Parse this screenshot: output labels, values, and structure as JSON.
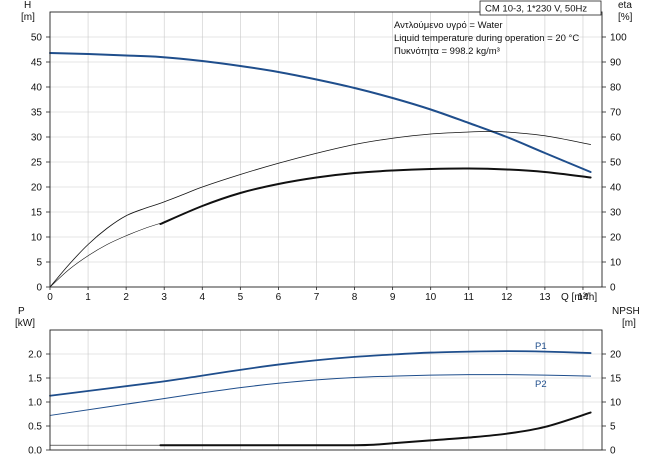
{
  "chart_data": [
    {
      "type": "line",
      "title": "CM 10-3, 1*230 V, 50Hz",
      "xlabel": "Q [m³/h]",
      "x_unit": "Q [m³/h]",
      "xlim": [
        0,
        14.5
      ],
      "x_ticks": [
        0,
        1,
        2,
        3,
        4,
        5,
        6,
        7,
        8,
        9,
        10,
        11,
        12,
        13,
        14
      ],
      "y_left_label": "H",
      "y_left_unit": "[m]",
      "y_left_lim": [
        0,
        55
      ],
      "y_left_ticks": [
        0,
        5,
        10,
        15,
        20,
        25,
        30,
        35,
        40,
        45,
        50
      ],
      "y_right_label": "eta",
      "y_right_unit": "[%]",
      "y_right_lim": [
        0,
        110
      ],
      "y_right_ticks": [
        0,
        10,
        20,
        30,
        40,
        50,
        60,
        70,
        80,
        90,
        100
      ],
      "grid": true,
      "annotations": [
        "Αντλούμενο υγρό = Water",
        "Liquid temperature during operation = 20 °C",
        "Πυκνότητα = 998.2 kg/m³"
      ],
      "series": [
        {
          "axis": "left",
          "color": "#1f4e8c",
          "width": 2.0,
          "x": [
            0,
            1,
            2,
            2.9,
            4,
            5,
            6,
            7,
            8,
            9,
            10,
            11,
            12,
            13,
            14.2
          ],
          "values": [
            46.8,
            46.6,
            46.3,
            46.0,
            45.2,
            44.2,
            43.0,
            41.5,
            39.8,
            37.8,
            35.5,
            32.8,
            30.0,
            26.8,
            23.0
          ]
        },
        {
          "axis": "right",
          "color": "#111111",
          "width": 0.8,
          "x": [
            0,
            0.5,
            1,
            1.5,
            2,
            2.5,
            2.9,
            3.5,
            4,
            5,
            6,
            7,
            8,
            9,
            10,
            11,
            11.5,
            12,
            13,
            14.2
          ],
          "values": [
            0,
            9,
            17,
            23.5,
            28.5,
            31.5,
            33.5,
            37,
            40,
            45,
            49.5,
            53.5,
            57,
            59.5,
            61.2,
            62.0,
            62.2,
            62.0,
            60.5,
            57.0
          ]
        },
        {
          "axis": "right",
          "color": "#111111",
          "width": 0.6,
          "x": [
            0,
            0.5,
            1,
            1.5,
            2,
            2.5,
            2.9
          ],
          "values": [
            0,
            7,
            12.5,
            17,
            20.5,
            23.5,
            25.5
          ]
        },
        {
          "axis": "left",
          "color": "#111111",
          "width": 2.0,
          "x": [
            2.9,
            4,
            5,
            6,
            7,
            8,
            9,
            10,
            11,
            12,
            13,
            14.2
          ],
          "values": [
            12.6,
            16.2,
            18.8,
            20.6,
            21.9,
            22.8,
            23.3,
            23.6,
            23.7,
            23.5,
            23.0,
            21.9
          ]
        }
      ]
    },
    {
      "type": "line",
      "xlim": [
        0,
        14.5
      ],
      "y_left_label": "P",
      "y_left_unit": "[kW]",
      "y_left_lim": [
        0,
        2.5
      ],
      "y_left_ticks": [
        0.0,
        0.5,
        1.0,
        1.5,
        2.0
      ],
      "y_left_tick_labels": [
        "0.0",
        "0.5",
        "1.0",
        "1.5",
        "2.0"
      ],
      "y_right_label": "NPSH",
      "y_right_unit": "[m]",
      "y_right_lim": [
        0,
        25
      ],
      "y_right_ticks": [
        0,
        5,
        10,
        15,
        20
      ],
      "grid": true,
      "series": [
        {
          "name": "P1",
          "label": "P1",
          "axis": "left",
          "color": "#1f4e8c",
          "width": 1.8,
          "x": [
            0,
            2.9,
            4,
            5,
            6,
            7,
            8,
            9,
            10,
            11,
            12,
            13,
            14.2
          ],
          "values": [
            1.13,
            1.42,
            1.55,
            1.67,
            1.78,
            1.87,
            1.94,
            1.99,
            2.03,
            2.05,
            2.06,
            2.05,
            2.02
          ]
        },
        {
          "name": "P2",
          "label": "P2",
          "axis": "left",
          "color": "#1f4e8c",
          "width": 1.0,
          "x": [
            0,
            2.9,
            4,
            5,
            6,
            7,
            8,
            9,
            10,
            11,
            12,
            13,
            14.2
          ],
          "values": [
            0.72,
            1.06,
            1.19,
            1.3,
            1.39,
            1.46,
            1.51,
            1.54,
            1.56,
            1.57,
            1.57,
            1.56,
            1.54
          ]
        },
        {
          "axis": "right",
          "color": "#111111",
          "width": 2.0,
          "x": [
            2.9,
            4,
            5,
            6,
            7,
            8,
            8.5,
            9,
            10,
            11,
            12,
            13,
            14.2
          ],
          "values": [
            1.0,
            1.0,
            1.0,
            1.0,
            1.0,
            1.0,
            1.1,
            1.4,
            2.0,
            2.6,
            3.4,
            4.8,
            7.8
          ]
        },
        {
          "axis": "right",
          "color": "#111111",
          "width": 0.6,
          "x": [
            0,
            2.9
          ],
          "values": [
            1.0,
            1.0
          ]
        }
      ]
    }
  ]
}
